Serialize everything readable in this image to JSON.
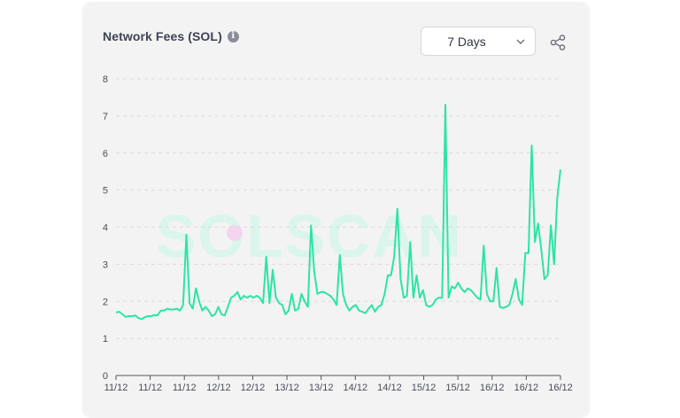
{
  "header": {
    "title": "Network Fees (SOL)",
    "info_icon": "info-icon"
  },
  "range_select": {
    "value": "7 Days",
    "icon": "chevron-down-icon"
  },
  "share": {
    "icon": "share-icon"
  },
  "watermark": {
    "text": "SOLSCAN"
  },
  "colors": {
    "line": "#2de3a8",
    "card_bg": "#f3f3f3",
    "grid": "#dcdcdc"
  },
  "chart_data": {
    "type": "line",
    "title": "Network Fees (SOL)",
    "xlabel": "",
    "ylabel": "",
    "ylim": [
      0,
      8
    ],
    "yticks": [
      0,
      1,
      2,
      3,
      4,
      5,
      6,
      7,
      8
    ],
    "xtick_labels": [
      "11/12",
      "11/12",
      "11/12",
      "12/12",
      "12/12",
      "13/12",
      "13/12",
      "14/12",
      "14/12",
      "15/12",
      "15/12",
      "16/12",
      "16/12",
      "16/12"
    ],
    "grid": "horizontal dashed",
    "legend": "none",
    "series": [
      {
        "values": [
          1.7,
          1.72,
          1.65,
          1.58,
          1.6,
          1.6,
          1.62,
          1.55,
          1.52,
          1.57,
          1.6,
          1.6,
          1.63,
          1.62,
          1.75,
          1.75,
          1.8,
          1.78,
          1.78,
          1.8,
          1.75,
          1.9,
          3.8,
          1.95,
          1.8,
          2.35,
          2.0,
          1.75,
          1.85,
          1.75,
          1.6,
          1.65,
          1.85,
          1.65,
          1.62,
          1.85,
          2.1,
          2.15,
          2.25,
          2.05,
          2.15,
          2.1,
          2.15,
          2.1,
          2.15,
          2.1,
          1.95,
          3.2,
          1.95,
          2.85,
          2.1,
          1.95,
          1.9,
          1.65,
          1.75,
          2.2,
          1.75,
          1.8,
          2.2,
          2.0,
          1.85,
          4.05,
          2.8,
          2.2,
          2.25,
          2.25,
          2.2,
          2.15,
          2.05,
          1.9,
          3.25,
          2.2,
          1.9,
          1.75,
          1.85,
          1.9,
          1.75,
          1.72,
          1.68,
          1.8,
          1.9,
          1.72,
          1.85,
          1.9,
          2.2,
          2.7,
          2.7,
          3.2,
          4.5,
          2.6,
          2.1,
          2.15,
          3.6,
          2.1,
          2.7,
          2.1,
          2.3,
          1.9,
          1.85,
          1.9,
          2.05,
          2.1,
          2.1,
          7.3,
          2.1,
          2.4,
          2.35,
          2.5,
          2.35,
          2.25,
          2.35,
          2.3,
          2.2,
          2.1,
          2.05,
          3.5,
          2.2,
          2.0,
          2.0,
          2.9,
          1.85,
          1.82,
          1.85,
          1.9,
          2.2,
          2.6,
          2.05,
          1.9,
          3.3,
          3.3,
          6.2,
          3.6,
          4.1,
          3.4,
          2.6,
          2.7,
          4.05,
          3.0,
          4.8,
          5.55
        ]
      }
    ]
  }
}
